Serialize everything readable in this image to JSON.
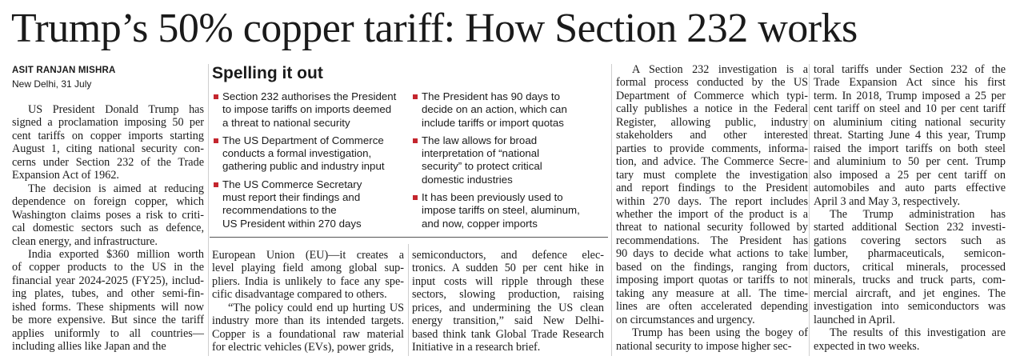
{
  "headline": "Trump’s 50% copper tariff: How Section 232 works",
  "byline": {
    "author": "ASIT RANJAN MISHRA",
    "dateline": "New Delhi, 31 July"
  },
  "box": {
    "title": "Spelling it out",
    "columns": [
      [
        [
          "Section 232 authorises the President",
          "to impose tariffs on imports deemed",
          "a threat to national security"
        ],
        [
          "The US Department of Commerce",
          "conducts a formal investigation,",
          "gathering public and industry input"
        ],
        [
          "The US Commerce Secretary",
          "must report their findings and",
          "recommendations to the",
          "US President within 270 days"
        ]
      ],
      [
        [
          "The President has 90 days to",
          "decide on an action, which can",
          "include tariffs or import quotas"
        ],
        [
          "The law allows for broad",
          "interpretation of “national",
          "security” to protect critical",
          "domestic industries"
        ],
        [
          "It has been previously used to",
          "impose tariffs on steel, aluminum,",
          "and now, copper imports"
        ]
      ]
    ]
  },
  "columns": [
    [
      [
        "US President Donald Trump has",
        "signed a proclamation imposing 50 per",
        "cent tariffs on copper imports starting",
        "August 1, citing national security con-",
        "cerns under Section 232 of the Trade",
        "Expansion Act of 1962."
      ],
      [
        "The decision is aimed at reducing",
        "dependence on foreign copper, which",
        "Washington claims poses a risk to criti-",
        "cal domestic sectors such as defence,",
        "clean energy, and infrastructure."
      ],
      [
        "India exported $360 million worth",
        "of copper products to the US in the",
        "financial year 2024-2025 (FY25), includ-",
        "ing plates, tubes, and other semi-fin-",
        "ished forms. These shipments will now",
        "be more expensive. But since the tariff",
        "applies uniformly to all countries—",
        "including allies like Japan and the"
      ]
    ],
    [
      [
        "European Union (EU)—it creates a",
        "level playing field among global sup-",
        "pliers. India is unlikely to face any spe-",
        "cific disadvantage compared to others."
      ],
      [
        "“The policy could end up hurting US",
        "industry more than its intended targets.",
        "Copper is a foundational raw material",
        "for electric vehicles (EVs), power grids,"
      ]
    ],
    [
      [
        "semiconductors, and defence elec-",
        "tronics. A sudden 50 per cent hike in",
        "input costs will ripple through these",
        "sectors, slowing production, raising",
        "prices, and undermining the US clean",
        "energy transition,” said New Delhi-",
        "based think tank Global Trade Research",
        "Initiative in a research brief."
      ]
    ],
    [
      [
        "A Section 232 investigation is a",
        "formal process conducted by the US",
        "Department of Commerce which typi-",
        "cally publishes a notice in the Federal",
        "Register, allowing public, industry",
        "stakeholders and other interested",
        "parties to provide comments, informa-",
        "tion, and advice. The Commerce Secre-",
        "tary must complete the investigation",
        "and report findings to the President",
        "within 270 days. The report includes",
        "whether the import of the product is a",
        "threat to national security followed by",
        "recommendations. The President has",
        "90 days to decide what actions to take",
        "based on the findings, ranging from",
        "imposing import quotas or tariffs to not",
        "taking any measure at all. The time-",
        "lines are often accelerated depending",
        "on circumstances and urgency."
      ],
      [
        "Trump has been using the bogey of",
        "national security to impose higher sec-"
      ]
    ],
    [
      [
        "toral tariffs under Section 232 of the",
        "Trade Expansion Act since his first",
        "term. In 2018, Trump imposed a 25 per",
        "cent tariff on steel and 10 per cent tariff",
        "on aluminium citing national security",
        "threat. Starting June 4 this year, Trump",
        "raised the import tariffs on both steel",
        "and aluminium to 50 per cent. Trump",
        "also imposed a 25 per cent tariff on",
        "automobiles and auto parts effective",
        "April 3 and May 3, respectively."
      ],
      [
        "The Trump administration has",
        "started additional Section 232 investi-",
        "gations covering sectors such as",
        "lumber, pharmaceuticals, semicon-",
        "ductors, critical minerals, processed",
        "minerals, trucks and truck parts, com-",
        "mercial aircraft, and jet engines. The",
        "investigation into semiconductors was",
        "launched in April."
      ],
      [
        "The results of this investigation are",
        "expected in two weeks."
      ]
    ]
  ]
}
